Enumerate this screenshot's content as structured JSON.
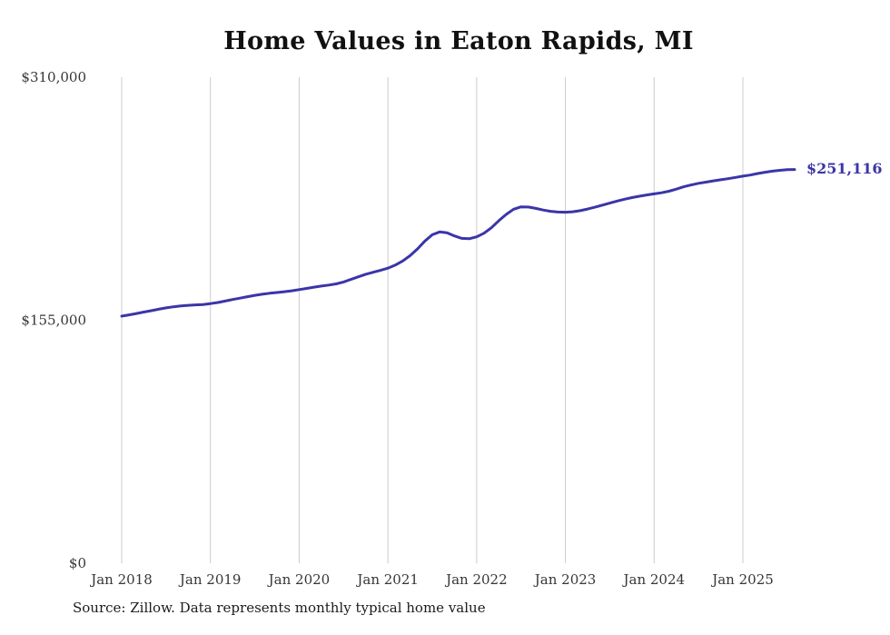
{
  "chart_data": {
    "type": "line",
    "title": "Home Values in Eaton Rapids, MI",
    "xlabel": "",
    "ylabel": "",
    "y_max": 310000,
    "ylim": [
      0,
      310000
    ],
    "grid": "vertical-only",
    "y_ticks": [
      {
        "label": "$0",
        "value": 0
      },
      {
        "label": "$155,000",
        "value": 155000
      },
      {
        "label": "$310,000",
        "value": 310000
      }
    ],
    "x_gridline_labels": [
      "Jan 2018",
      "Jan 2019",
      "Jan 2020",
      "Jan 2021",
      "Jan 2022",
      "Jan 2023",
      "Jan 2024",
      "Jan 2025"
    ],
    "x_start": "Jan 2018",
    "x_end": "Aug 2025",
    "x_interval": "monthly",
    "series_name": "Typical home value",
    "values": [
      157600,
      158400,
      159300,
      160200,
      161100,
      162000,
      162900,
      163600,
      164100,
      164500,
      164800,
      165000,
      165600,
      166300,
      167200,
      168200,
      169100,
      170000,
      170900,
      171600,
      172200,
      172700,
      173200,
      173800,
      174500,
      175300,
      176100,
      176800,
      177400,
      178200,
      179400,
      181000,
      182700,
      184300,
      185600,
      186800,
      188200,
      190200,
      192800,
      196200,
      200500,
      205500,
      209500,
      211300,
      210800,
      208800,
      207200,
      207000,
      208200,
      210500,
      214000,
      218500,
      222500,
      225800,
      227300,
      227200,
      226300,
      225300,
      224500,
      224000,
      223900,
      224200,
      224900,
      225900,
      227100,
      228400,
      229700,
      231000,
      232200,
      233200,
      234100,
      234900,
      235600,
      236300,
      237300,
      238600,
      240100,
      241300,
      242300,
      243100,
      243900,
      244600,
      245300,
      246100,
      246900,
      247600,
      248600,
      249400,
      250100,
      250600,
      251000,
      251116
    ],
    "end_label": "$251,116",
    "last_value": 251116,
    "source_note": "Source: Zillow. Data represents monthly typical home value",
    "colors": {
      "line": "#3b35a9",
      "end_label": "#3b35a9",
      "grid": "#cccccc",
      "tick_text": "#363636",
      "title_text": "#111111",
      "background": "#ffffff"
    }
  }
}
